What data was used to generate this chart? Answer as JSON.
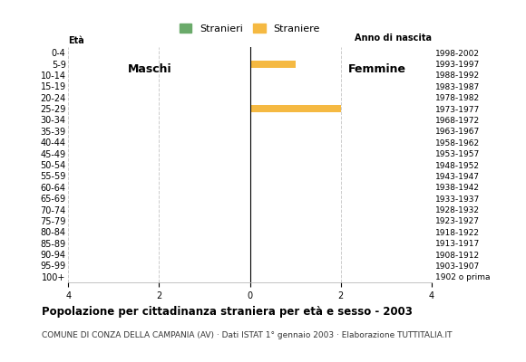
{
  "age_groups": [
    "100+",
    "95-99",
    "90-94",
    "85-89",
    "80-84",
    "75-79",
    "70-74",
    "65-69",
    "60-64",
    "55-59",
    "50-54",
    "45-49",
    "40-44",
    "35-39",
    "30-34",
    "25-29",
    "20-24",
    "15-19",
    "10-14",
    "5-9",
    "0-4"
  ],
  "birth_years": [
    "1902 o prima",
    "1903-1907",
    "1908-1912",
    "1913-1917",
    "1918-1922",
    "1923-1927",
    "1928-1932",
    "1933-1937",
    "1938-1942",
    "1943-1947",
    "1948-1952",
    "1953-1957",
    "1958-1962",
    "1963-1967",
    "1968-1972",
    "1973-1977",
    "1978-1982",
    "1983-1987",
    "1988-1992",
    "1993-1997",
    "1998-2002"
  ],
  "males": [
    0,
    0,
    0,
    0,
    0,
    0,
    0,
    0,
    0,
    0,
    0,
    0,
    0,
    0,
    0,
    0,
    0,
    0,
    0,
    0,
    0
  ],
  "females": [
    0,
    0,
    0,
    0,
    0,
    0,
    0,
    0,
    0,
    0,
    0,
    0,
    0,
    0,
    0,
    2,
    0,
    0,
    0,
    1,
    0
  ],
  "male_color": "#6aaa6a",
  "female_color": "#f5b942",
  "xlim": 4,
  "title": "Popolazione per cittadinanza straniera per età e sesso - 2003",
  "subtitle": "COMUNE DI CONZA DELLA CAMPANIA (AV) · Dati ISTAT 1° gennaio 2003 · Elaborazione TUTTITALIA.IT",
  "legend_male": "Stranieri",
  "legend_female": "Straniere",
  "label_eta": "Età",
  "label_anno": "Anno di nascita",
  "label_maschi": "Maschi",
  "label_femmine": "Femmine",
  "background_color": "#ffffff",
  "grid_color": "#cccccc"
}
